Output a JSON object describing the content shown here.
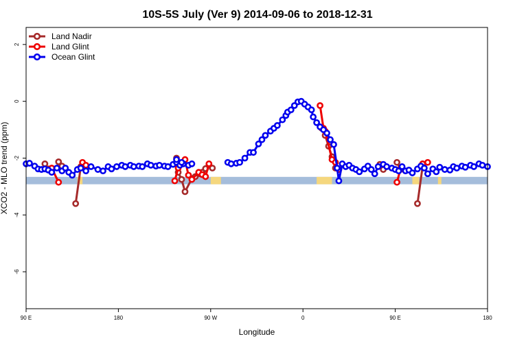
{
  "chart_data": {
    "type": "line",
    "title": "10S-5S July (Ver 9)   2014-09-06 to 2018-12-31",
    "xlabel": "Longitude",
    "ylabel": "XCO2 - MLO trend (ppm)",
    "x_range_deg": [
      -90,
      180
    ],
    "ylim": [
      -7.3,
      2.6
    ],
    "x_ticks": [
      {
        "pos": -90,
        "label": "90 E"
      },
      {
        "pos": -36,
        "label": "180"
      },
      {
        "pos": 18,
        "label": "90 W"
      },
      {
        "pos": 72,
        "label": "0"
      },
      {
        "pos": 126,
        "label": "90 E"
      },
      {
        "pos": 180,
        "label": "180"
      }
    ],
    "y_ticks": [
      {
        "value": 2,
        "label": "2"
      },
      {
        "value": 0,
        "label": "0"
      },
      {
        "value": -2,
        "label": "-2"
      },
      {
        "value": -4,
        "label": "-4"
      },
      {
        "value": -6,
        "label": "-6"
      }
    ],
    "legend_position": "top-left",
    "map_band": {
      "y_top": -2.66,
      "y_bottom": -2.92,
      "ocean_color": "#a5bddb",
      "land_color": "#f5d77e",
      "land_segments": [
        [
          -60,
          -57
        ],
        [
          18,
          24
        ],
        [
          80,
          89
        ],
        [
          136,
          140
        ],
        [
          151,
          153
        ]
      ]
    },
    "series": [
      {
        "name": "Land Nadir",
        "color": "#a52a2a",
        "segments": [
          [
            [
              -79,
              -2.2
            ],
            [
              -77,
              -2.38
            ]
          ],
          [
            [
              -71,
              -2.13
            ],
            [
              -69,
              -2.28
            ]
          ],
          [
            [
              -61,
              -3.6
            ],
            [
              -58,
              -2.3
            ]
          ],
          [
            [
              -2,
              -2.0
            ],
            [
              -1,
              -2.5
            ],
            [
              1,
              -2.75
            ],
            [
              3,
              -3.18
            ],
            [
              7,
              -2.72
            ],
            [
              9,
              -2.65
            ],
            [
              11,
              -2.55
            ],
            [
              13,
              -2.5
            ],
            [
              15,
              -2.37
            ],
            [
              17,
              -2.25
            ],
            [
              19,
              -2.35
            ]
          ],
          [
            [
              83,
              -0.95
            ],
            [
              85,
              -1.2
            ],
            [
              87,
              -1.58
            ],
            [
              89,
              -1.95
            ],
            [
              91,
              -2.35
            ]
          ],
          [
            [
              117,
              -2.22
            ],
            [
              119,
              -2.4
            ]
          ],
          [
            [
              127,
              -2.15
            ],
            [
              129,
              -2.38
            ]
          ],
          [
            [
              139,
              -3.6
            ],
            [
              142,
              -2.3
            ]
          ]
        ]
      },
      {
        "name": "Land Glint",
        "color": "#ee0000",
        "segments": [
          [
            [
              -75,
              -2.35
            ],
            [
              -71,
              -2.85
            ]
          ],
          [
            [
              -57,
              -2.15
            ],
            [
              -55,
              -2.25
            ]
          ],
          [
            [
              -3,
              -2.8
            ],
            [
              -1,
              -2.35
            ],
            [
              3,
              -2.05
            ],
            [
              5,
              -2.6
            ],
            [
              7,
              -2.75
            ],
            [
              11,
              -2.5
            ],
            [
              13,
              -2.58
            ],
            [
              15,
              -2.65
            ],
            [
              17,
              -2.2
            ]
          ],
          [
            [
              82,
              -0.15
            ],
            [
              84,
              -0.95
            ],
            [
              85,
              -1.05
            ],
            [
              89,
              -2.05
            ],
            [
              91,
              -2.15
            ],
            [
              93,
              -2.4
            ]
          ],
          [
            [
              127,
              -2.85
            ],
            [
              129,
              -2.4
            ]
          ],
          [
            [
              142,
              -2.2
            ],
            [
              145,
              -2.15
            ]
          ]
        ]
      },
      {
        "name": "Ocean Glint",
        "color": "#0000ee",
        "segments": [
          [
            [
              -90,
              -2.2
            ],
            [
              -88,
              -2.18
            ],
            [
              -85,
              -2.28
            ],
            [
              -83,
              -2.38
            ],
            [
              -81,
              -2.4
            ],
            [
              -79,
              -2.38
            ],
            [
              -77,
              -2.42
            ],
            [
              -75,
              -2.5
            ],
            [
              -72,
              -2.35
            ],
            [
              -69,
              -2.45
            ],
            [
              -67,
              -2.35
            ],
            [
              -65,
              -2.5
            ],
            [
              -63,
              -2.6
            ],
            [
              -60,
              -2.4
            ],
            [
              -58,
              -2.35
            ],
            [
              -55,
              -2.45
            ],
            [
              -52,
              -2.3
            ],
            [
              -48,
              -2.4
            ],
            [
              -45,
              -2.45
            ],
            [
              -42,
              -2.3
            ],
            [
              -40,
              -2.38
            ],
            [
              -37,
              -2.3
            ],
            [
              -34,
              -2.25
            ],
            [
              -32,
              -2.3
            ],
            [
              -29,
              -2.25
            ],
            [
              -27,
              -2.3
            ],
            [
              -24,
              -2.28
            ],
            [
              -22,
              -2.3
            ],
            [
              -19,
              -2.2
            ],
            [
              -17,
              -2.25
            ],
            [
              -14,
              -2.28
            ],
            [
              -12,
              -2.25
            ],
            [
              -9,
              -2.28
            ],
            [
              -7,
              -2.3
            ],
            [
              -4,
              -2.22
            ],
            [
              -2,
              -2.15
            ],
            [
              0,
              -2.25
            ],
            [
              2,
              -2.2
            ],
            [
              5,
              -2.25
            ],
            [
              7,
              -2.2
            ]
          ],
          [
            [
              -2,
              -2.05
            ],
            [
              1,
              -2.15
            ]
          ],
          [
            [
              28,
              -2.15
            ],
            [
              30,
              -2.2
            ],
            [
              33,
              -2.18
            ],
            [
              35,
              -2.15
            ],
            [
              38,
              -2.0
            ],
            [
              41,
              -1.8
            ],
            [
              43,
              -1.8
            ],
            [
              46,
              -1.5
            ],
            [
              48,
              -1.35
            ],
            [
              50,
              -1.2
            ],
            [
              53,
              -1.05
            ],
            [
              55,
              -0.95
            ],
            [
              57,
              -0.85
            ],
            [
              60,
              -0.65
            ],
            [
              62,
              -0.5
            ],
            [
              63,
              -0.38
            ],
            [
              65,
              -0.3
            ],
            [
              67,
              -0.15
            ],
            [
              69,
              -0.02
            ],
            [
              71,
              0.0
            ],
            [
              73,
              -0.1
            ],
            [
              75,
              -0.2
            ],
            [
              77,
              -0.3
            ],
            [
              78,
              -0.55
            ],
            [
              80,
              -0.75
            ],
            [
              82,
              -0.9
            ],
            [
              84,
              -1.0
            ],
            [
              86,
              -1.12
            ],
            [
              88,
              -1.35
            ],
            [
              90,
              -1.52
            ],
            [
              92,
              -2.35
            ],
            [
              93,
              -2.8
            ],
            [
              95,
              -2.2
            ],
            [
              97,
              -2.3
            ],
            [
              99,
              -2.25
            ],
            [
              101,
              -2.35
            ],
            [
              103,
              -2.4
            ],
            [
              105,
              -2.48
            ],
            [
              108,
              -2.38
            ],
            [
              110,
              -2.28
            ],
            [
              112,
              -2.4
            ],
            [
              114,
              -2.55
            ],
            [
              116,
              -2.3
            ],
            [
              119,
              -2.22
            ],
            [
              121,
              -2.3
            ],
            [
              124,
              -2.35
            ],
            [
              126,
              -2.4
            ],
            [
              128,
              -2.45
            ],
            [
              130,
              -2.3
            ],
            [
              132,
              -2.45
            ],
            [
              134,
              -2.42
            ],
            [
              136,
              -2.52
            ],
            [
              139,
              -2.38
            ],
            [
              141,
              -2.28
            ],
            [
              143,
              -2.35
            ],
            [
              145,
              -2.55
            ],
            [
              148,
              -2.38
            ],
            [
              150,
              -2.48
            ],
            [
              152,
              -2.32
            ],
            [
              155,
              -2.4
            ],
            [
              158,
              -2.42
            ],
            [
              160,
              -2.3
            ],
            [
              162,
              -2.35
            ],
            [
              165,
              -2.28
            ],
            [
              167,
              -2.32
            ],
            [
              170,
              -2.25
            ],
            [
              172,
              -2.3
            ],
            [
              175,
              -2.2
            ],
            [
              177,
              -2.25
            ],
            [
              180,
              -2.3
            ]
          ]
        ]
      }
    ]
  }
}
